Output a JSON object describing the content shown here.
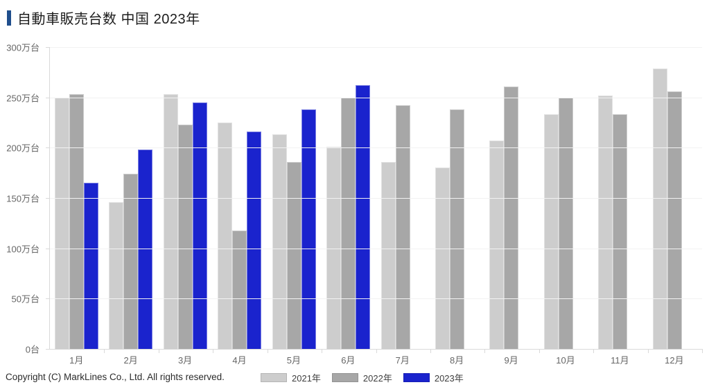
{
  "title": {
    "text": "自動車販売台数 中国 2023年"
  },
  "accent_color": "#1f4e8c",
  "copyright": "Copyright (C) MarkLines Co., Ltd. All rights reserved.",
  "chart_data": {
    "type": "bar",
    "title": "自動車販売台数 中国 2023年",
    "unit": "万台",
    "categories": [
      "1月",
      "2月",
      "3月",
      "4月",
      "5月",
      "6月",
      "7月",
      "8月",
      "9月",
      "10月",
      "11月",
      "12月"
    ],
    "series": [
      {
        "name": "2021年",
        "color": "#cdcdcd",
        "values": [
          250,
          146,
          253,
          225,
          213,
          201,
          186,
          180,
          207,
          233,
          252,
          279
        ]
      },
      {
        "name": "2022年",
        "color": "#a7a7a7",
        "values": [
          253,
          174,
          223,
          118,
          186,
          250,
          242,
          238,
          261,
          250,
          233,
          256
        ]
      },
      {
        "name": "2023年",
        "color": "#1a23cd",
        "values": [
          165,
          198,
          245,
          216,
          238,
          262,
          null,
          null,
          null,
          null,
          null,
          null
        ]
      }
    ],
    "ylim": [
      0,
      300
    ],
    "ytick_step": 50,
    "ytick_labels": [
      "300万台",
      "250万台",
      "200万台",
      "150万台",
      "100万台",
      "50万台",
      "0台"
    ],
    "grid": true,
    "legend_position": "bottom",
    "colors": {
      "gridline": "#f2f2f2",
      "axis": "#d9d9d9",
      "axis_text": "#666666"
    }
  }
}
